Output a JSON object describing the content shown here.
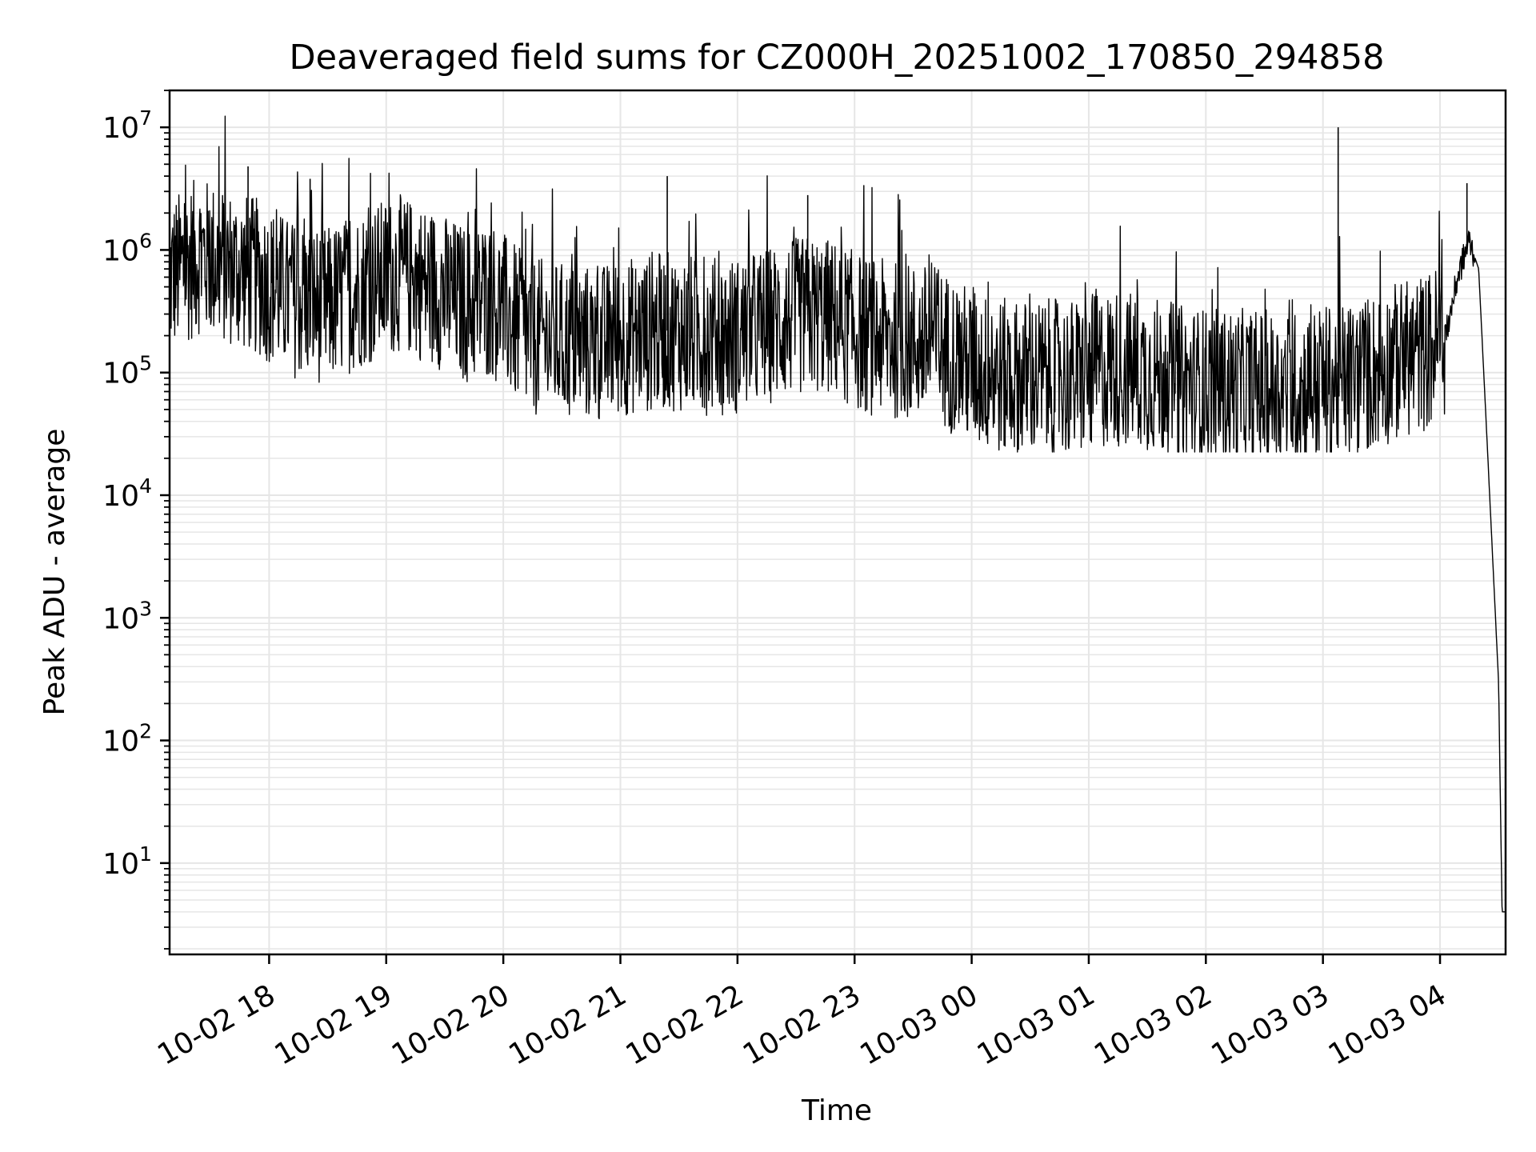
{
  "chart_data": {
    "type": "line",
    "title": "Deaveraged field sums for CZ000H_20251002_170850_294858",
    "xlabel": "Time",
    "ylabel": "Peak ADU - average",
    "yscale": "log",
    "ylim": [
      1.8,
      20000000
    ],
    "xlim_hours_from_10-02_17": [
      0.15,
      11.56
    ],
    "grid": true,
    "line_color": "#000000",
    "x_ticks": [
      {
        "label": "10-02 18",
        "hour": 1
      },
      {
        "label": "10-02 19",
        "hour": 2
      },
      {
        "label": "10-02 20",
        "hour": 3
      },
      {
        "label": "10-02 21",
        "hour": 4
      },
      {
        "label": "10-02 22",
        "hour": 5
      },
      {
        "label": "10-02 23",
        "hour": 6
      },
      {
        "label": "10-03 00",
        "hour": 7
      },
      {
        "label": "10-03 01",
        "hour": 8
      },
      {
        "label": "10-03 02",
        "hour": 9
      },
      {
        "label": "10-03 03",
        "hour": 10
      },
      {
        "label": "10-03 04",
        "hour": 11
      }
    ],
    "y_ticks": [
      {
        "base": "10",
        "exp": "1",
        "value": 10
      },
      {
        "base": "10",
        "exp": "2",
        "value": 100
      },
      {
        "base": "10",
        "exp": "3",
        "value": 1000
      },
      {
        "base": "10",
        "exp": "4",
        "value": 10000
      },
      {
        "base": "10",
        "exp": "5",
        "value": 100000
      },
      {
        "base": "10",
        "exp": "6",
        "value": 1000000
      },
      {
        "base": "10",
        "exp": "7",
        "value": 10000000
      }
    ],
    "series": [
      {
        "name": "Peak ADU - average",
        "x_hours": [
          0.15,
          0.4,
          0.7,
          0.9,
          1.2,
          1.5,
          1.8,
          2.1,
          2.4,
          2.7,
          2.9,
          3.2,
          3.5,
          3.8,
          4.1,
          4.4,
          4.7,
          5.0,
          5.3,
          5.6,
          5.8,
          6.1,
          6.4,
          6.7,
          7.0,
          7.3,
          7.6,
          7.9,
          8.2,
          8.5,
          8.8,
          9.1,
          9.4,
          9.7,
          10.0,
          10.3,
          10.6,
          10.9,
          11.05,
          11.15,
          11.25,
          11.33,
          11.4,
          11.45,
          11.5,
          11.53,
          11.56
        ],
        "y_baseline": [
          600000,
          900000,
          700000,
          600000,
          400000,
          350000,
          500000,
          650000,
          500000,
          350000,
          400000,
          200000,
          180000,
          170000,
          200000,
          220000,
          200000,
          200000,
          250000,
          300000,
          280000,
          200000,
          180000,
          170000,
          110000,
          90000,
          90000,
          90000,
          110000,
          100000,
          80000,
          75000,
          75000,
          70000,
          80000,
          90000,
          120000,
          150000,
          200000,
          600000,
          1200000,
          700000,
          30000,
          3000,
          300,
          4,
          4
        ],
        "notable_peaks": [
          {
            "hour": 0.82,
            "value": 4800000
          },
          {
            "hour": 1.35,
            "value": 3800000
          },
          {
            "hour": 4.4,
            "value": 4000000
          },
          {
            "hour": 5.6,
            "value": 2800000
          },
          {
            "hour": 10.13,
            "value": 10000000
          },
          {
            "hour": 11.23,
            "value": 3500000
          }
        ],
        "typical_min": 30000
      }
    ]
  }
}
